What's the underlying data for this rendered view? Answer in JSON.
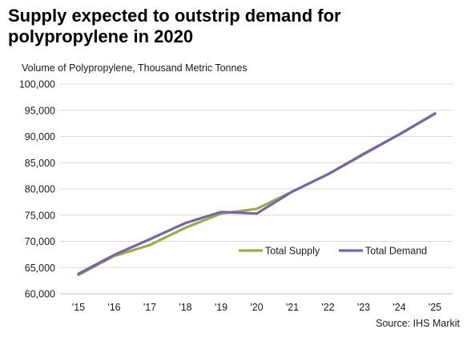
{
  "title_line1": "Supply expected to outstrip demand for",
  "title_line2": "polypropylene in 2020",
  "source": "Source: IHS Markit",
  "chart_data": {
    "type": "line",
    "title": "Supply expected to outstrip demand for polypropylene in 2020",
    "ylabel": "Volume of Polypropylene, Thousand Metric Tonnes",
    "xlabel": "",
    "x": [
      "'15",
      "'16",
      "'17",
      "'18",
      "'19",
      "'20",
      "'21",
      "'22",
      "'23",
      "'24",
      "'25"
    ],
    "ylim": [
      60000,
      100000
    ],
    "yticks": [
      60000,
      65000,
      70000,
      75000,
      80000,
      85000,
      90000,
      95000,
      100000
    ],
    "ytick_labels": [
      "60,000",
      "65,000",
      "70,000",
      "75,000",
      "80,000",
      "85,000",
      "90,000",
      "95,000",
      "100,000"
    ],
    "grid": "horizontal",
    "legend_position": "right-center",
    "series": [
      {
        "name": "Total Supply",
        "color": "#93b145",
        "values": [
          63600,
          67200,
          69300,
          72600,
          75300,
          76200,
          79500,
          82800,
          86600,
          90400,
          94300
        ]
      },
      {
        "name": "Total Demand",
        "color": "#7a63a6",
        "values": [
          63800,
          67400,
          70400,
          73500,
          75600,
          75300,
          79500,
          82800,
          86700,
          90400,
          94400
        ]
      }
    ]
  }
}
